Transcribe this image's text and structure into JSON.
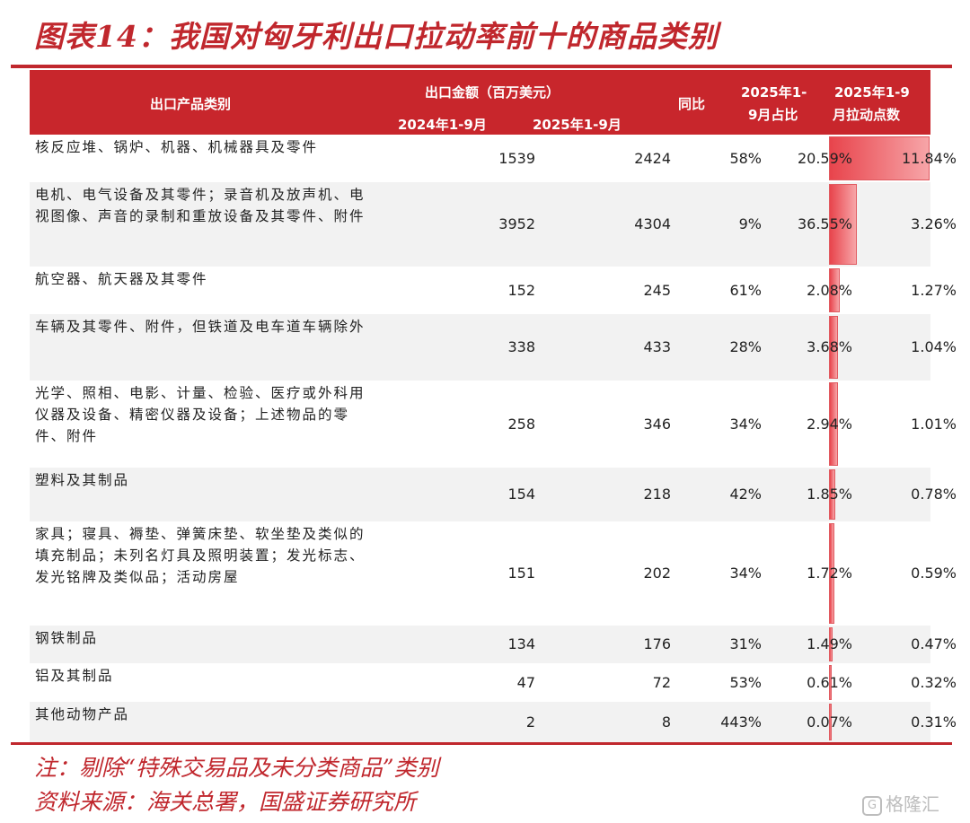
{
  "title": "图表14：我国对匈牙利出口拉动率前十的商品类别",
  "header": {
    "category": "出口产品类别",
    "export_amount": "出口金额（百万美元）",
    "period_2024": "2024年1-9月",
    "period_2025": "2025年1-9月",
    "yoy": "同比",
    "share_line1": "2025年1-",
    "share_line2": "9月占比",
    "contrib_line1": "2025年1-9",
    "contrib_line2": "月拉动点数"
  },
  "rows": [
    {
      "category": "核反应堆、锅炉、机器、机械器具及零件",
      "v2024": "1539",
      "v2025": "2424",
      "yoy": "58%",
      "share": "20.59%",
      "contrib": "11.84%",
      "contrib_value": 11.84
    },
    {
      "category": "电机、电气设备及其零件；录音机及放声机、电视图像、声音的录制和重放设备及其零件、附件",
      "v2024": "3952",
      "v2025": "4304",
      "yoy": "9%",
      "share": "36.55%",
      "contrib": "3.26%",
      "contrib_value": 3.26
    },
    {
      "category": "航空器、航天器及其零件",
      "v2024": "152",
      "v2025": "245",
      "yoy": "61%",
      "share": "2.08%",
      "contrib": "1.27%",
      "contrib_value": 1.27
    },
    {
      "category": "车辆及其零件、附件，但铁道及电车道车辆除外",
      "v2024": "338",
      "v2025": "433",
      "yoy": "28%",
      "share": "3.68%",
      "contrib": "1.04%",
      "contrib_value": 1.04
    },
    {
      "category": "光学、照相、电影、计量、检验、医疗或外科用仪器及设备、精密仪器及设备；上述物品的零件、附件",
      "v2024": "258",
      "v2025": "346",
      "yoy": "34%",
      "share": "2.94%",
      "contrib": "1.01%",
      "contrib_value": 1.01
    },
    {
      "category": "塑料及其制品",
      "v2024": "154",
      "v2025": "218",
      "yoy": "42%",
      "share": "1.85%",
      "contrib": "0.78%",
      "contrib_value": 0.78
    },
    {
      "category": "家具；寝具、褥垫、弹簧床垫、软坐垫及类似的填充制品；未列名灯具及照明装置；发光标志、发光铭牌及类似品；活动房屋",
      "v2024": "151",
      "v2025": "202",
      "yoy": "34%",
      "share": "1.72%",
      "contrib": "0.59%",
      "contrib_value": 0.59
    },
    {
      "category": "钢铁制品",
      "v2024": "134",
      "v2025": "176",
      "yoy": "31%",
      "share": "1.49%",
      "contrib": "0.47%",
      "contrib_value": 0.47
    },
    {
      "category": "铝及其制品",
      "v2024": "47",
      "v2025": "72",
      "yoy": "53%",
      "share": "0.61%",
      "contrib": "0.32%",
      "contrib_value": 0.32
    },
    {
      "category": "其他动物产品",
      "v2024": "2",
      "v2025": "8",
      "yoy": "443%",
      "share": "0.07%",
      "contrib": "0.31%",
      "contrib_value": 0.31
    }
  ],
  "note": "注：剔除“特殊交易品及未分类商品”类别",
  "source": "资料来源：海关总署，国盛证券研究所",
  "watermark": "格隆汇",
  "watermark_logo": "G"
}
